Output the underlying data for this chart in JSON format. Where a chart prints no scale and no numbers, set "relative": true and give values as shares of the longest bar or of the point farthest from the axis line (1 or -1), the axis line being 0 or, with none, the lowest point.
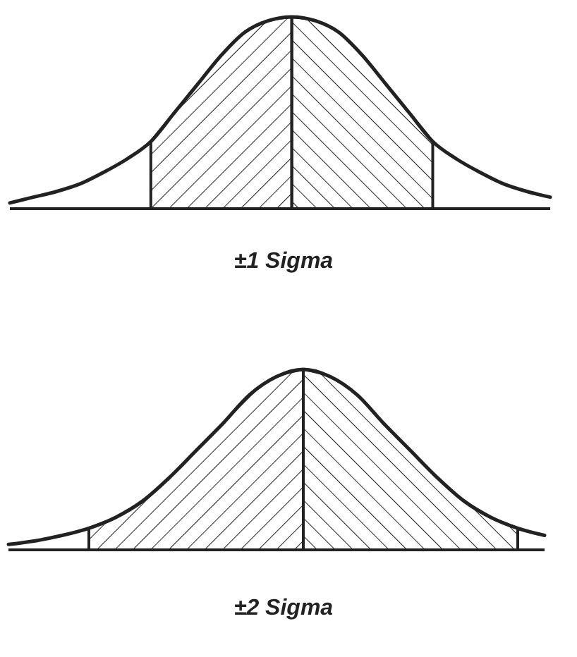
{
  "chart_data": [
    {
      "type": "line",
      "relative": true,
      "xlabel": "±1 Sigma",
      "categories": [
        null,
        null,
        null,
        null,
        null,
        null,
        null,
        null,
        null,
        null,
        null,
        null,
        null,
        null,
        null,
        null,
        null,
        null,
        null,
        null,
        null,
        null,
        null,
        null
      ],
      "series": [
        {
          "color": "#222222",
          "values": [
            0.03,
            0.06,
            0.09,
            0.13,
            0.19,
            0.26,
            0.35,
            0.5,
            0.65,
            0.8,
            0.92,
            0.98,
            1,
            0.98,
            0.92,
            0.8,
            0.65,
            0.5,
            0.35,
            0.26,
            0.19,
            0.13,
            0.09,
            0.06
          ]
        },
        {
          "type": "area",
          "color": "#222222",
          "values": [
            null,
            null,
            null,
            null,
            null,
            null,
            0.35,
            0.5,
            0.65,
            0.8,
            0.92,
            0.98,
            1,
            null,
            null,
            null,
            null,
            null,
            null,
            null,
            null,
            null,
            null,
            null
          ]
        },
        {
          "type": "area",
          "color": "#222222",
          "values": [
            null,
            null,
            null,
            null,
            null,
            null,
            null,
            null,
            null,
            null,
            null,
            null,
            1,
            0.98,
            0.92,
            0.8,
            0.65,
            0.5,
            0.35,
            null,
            null,
            null,
            null,
            null
          ]
        }
      ]
    },
    {
      "type": "line",
      "relative": true,
      "xlabel": "±2 Sigma",
      "categories": [
        null,
        null,
        null,
        null,
        null,
        null,
        null,
        null,
        null,
        null,
        null,
        null,
        null,
        null,
        null,
        null,
        null,
        null,
        null,
        null,
        null
      ],
      "series": [
        {
          "color": "#222222",
          "values": [
            0.03,
            0.05,
            0.08,
            0.12,
            0.18,
            0.27,
            0.4,
            0.55,
            0.7,
            0.86,
            0.96,
            1,
            0.96,
            0.86,
            0.7,
            0.55,
            0.4,
            0.27,
            0.18,
            0.12,
            0.08
          ]
        },
        {
          "type": "area",
          "color": "#222222",
          "values": [
            null,
            null,
            null,
            0.12,
            0.18,
            0.27,
            0.4,
            0.55,
            0.7,
            0.86,
            0.96,
            1,
            null,
            null,
            null,
            null,
            null,
            null,
            null,
            null,
            null
          ]
        },
        {
          "type": "area",
          "color": "#222222",
          "values": [
            null,
            null,
            null,
            null,
            null,
            null,
            null,
            null,
            null,
            null,
            null,
            1,
            0.96,
            0.86,
            0.7,
            0.55,
            0.4,
            0.27,
            0.18,
            0.12,
            null
          ]
        }
      ]
    }
  ]
}
